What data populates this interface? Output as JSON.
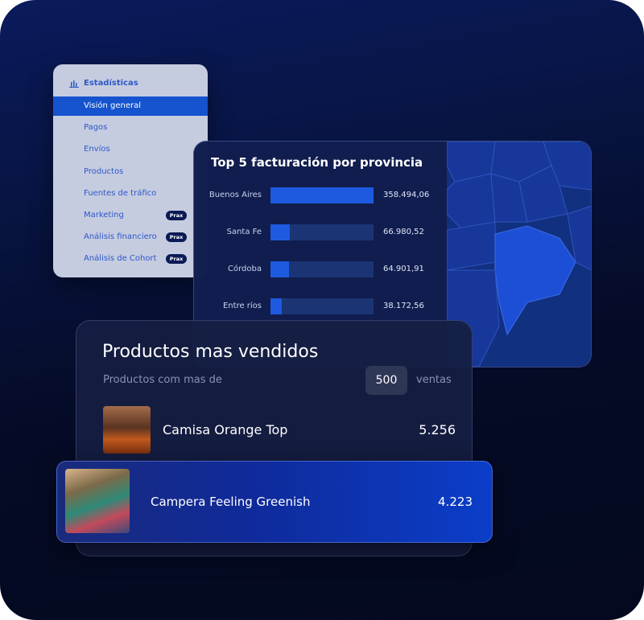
{
  "sidebar": {
    "header": "Estadísticas",
    "items": [
      {
        "label": "Visión general"
      },
      {
        "label": "Pagos"
      },
      {
        "label": "Envíos"
      },
      {
        "label": "Productos"
      },
      {
        "label": "Fuentes de tráfico"
      },
      {
        "label": "Marketing",
        "badge": "Prax"
      },
      {
        "label": "Análisis financiero",
        "badge": "Prax"
      },
      {
        "label": "Análisis de Cohort",
        "badge": "Prax"
      }
    ]
  },
  "sales_chart": {
    "title": "Top 5 facturación por provincia",
    "categories": [
      "Buenos Aires",
      "Santa Fe",
      "Córdoba",
      "Entre ríos"
    ],
    "values": [
      358494.06,
      66980.52,
      64901.91,
      38172.56
    ],
    "value_labels": [
      "358.494,06",
      "66.980,52",
      "64.901,91",
      "38.172,56"
    ]
  },
  "top_products": {
    "title": "Productos mas vendidos",
    "subtitle": "Productos com mas de",
    "threshold": "500",
    "unit": "ventas",
    "items": [
      {
        "name": "Camisa Orange Top",
        "sales": "5.256"
      },
      {
        "name": "Campera Feeling Greenish",
        "sales": "4.223"
      }
    ]
  }
}
